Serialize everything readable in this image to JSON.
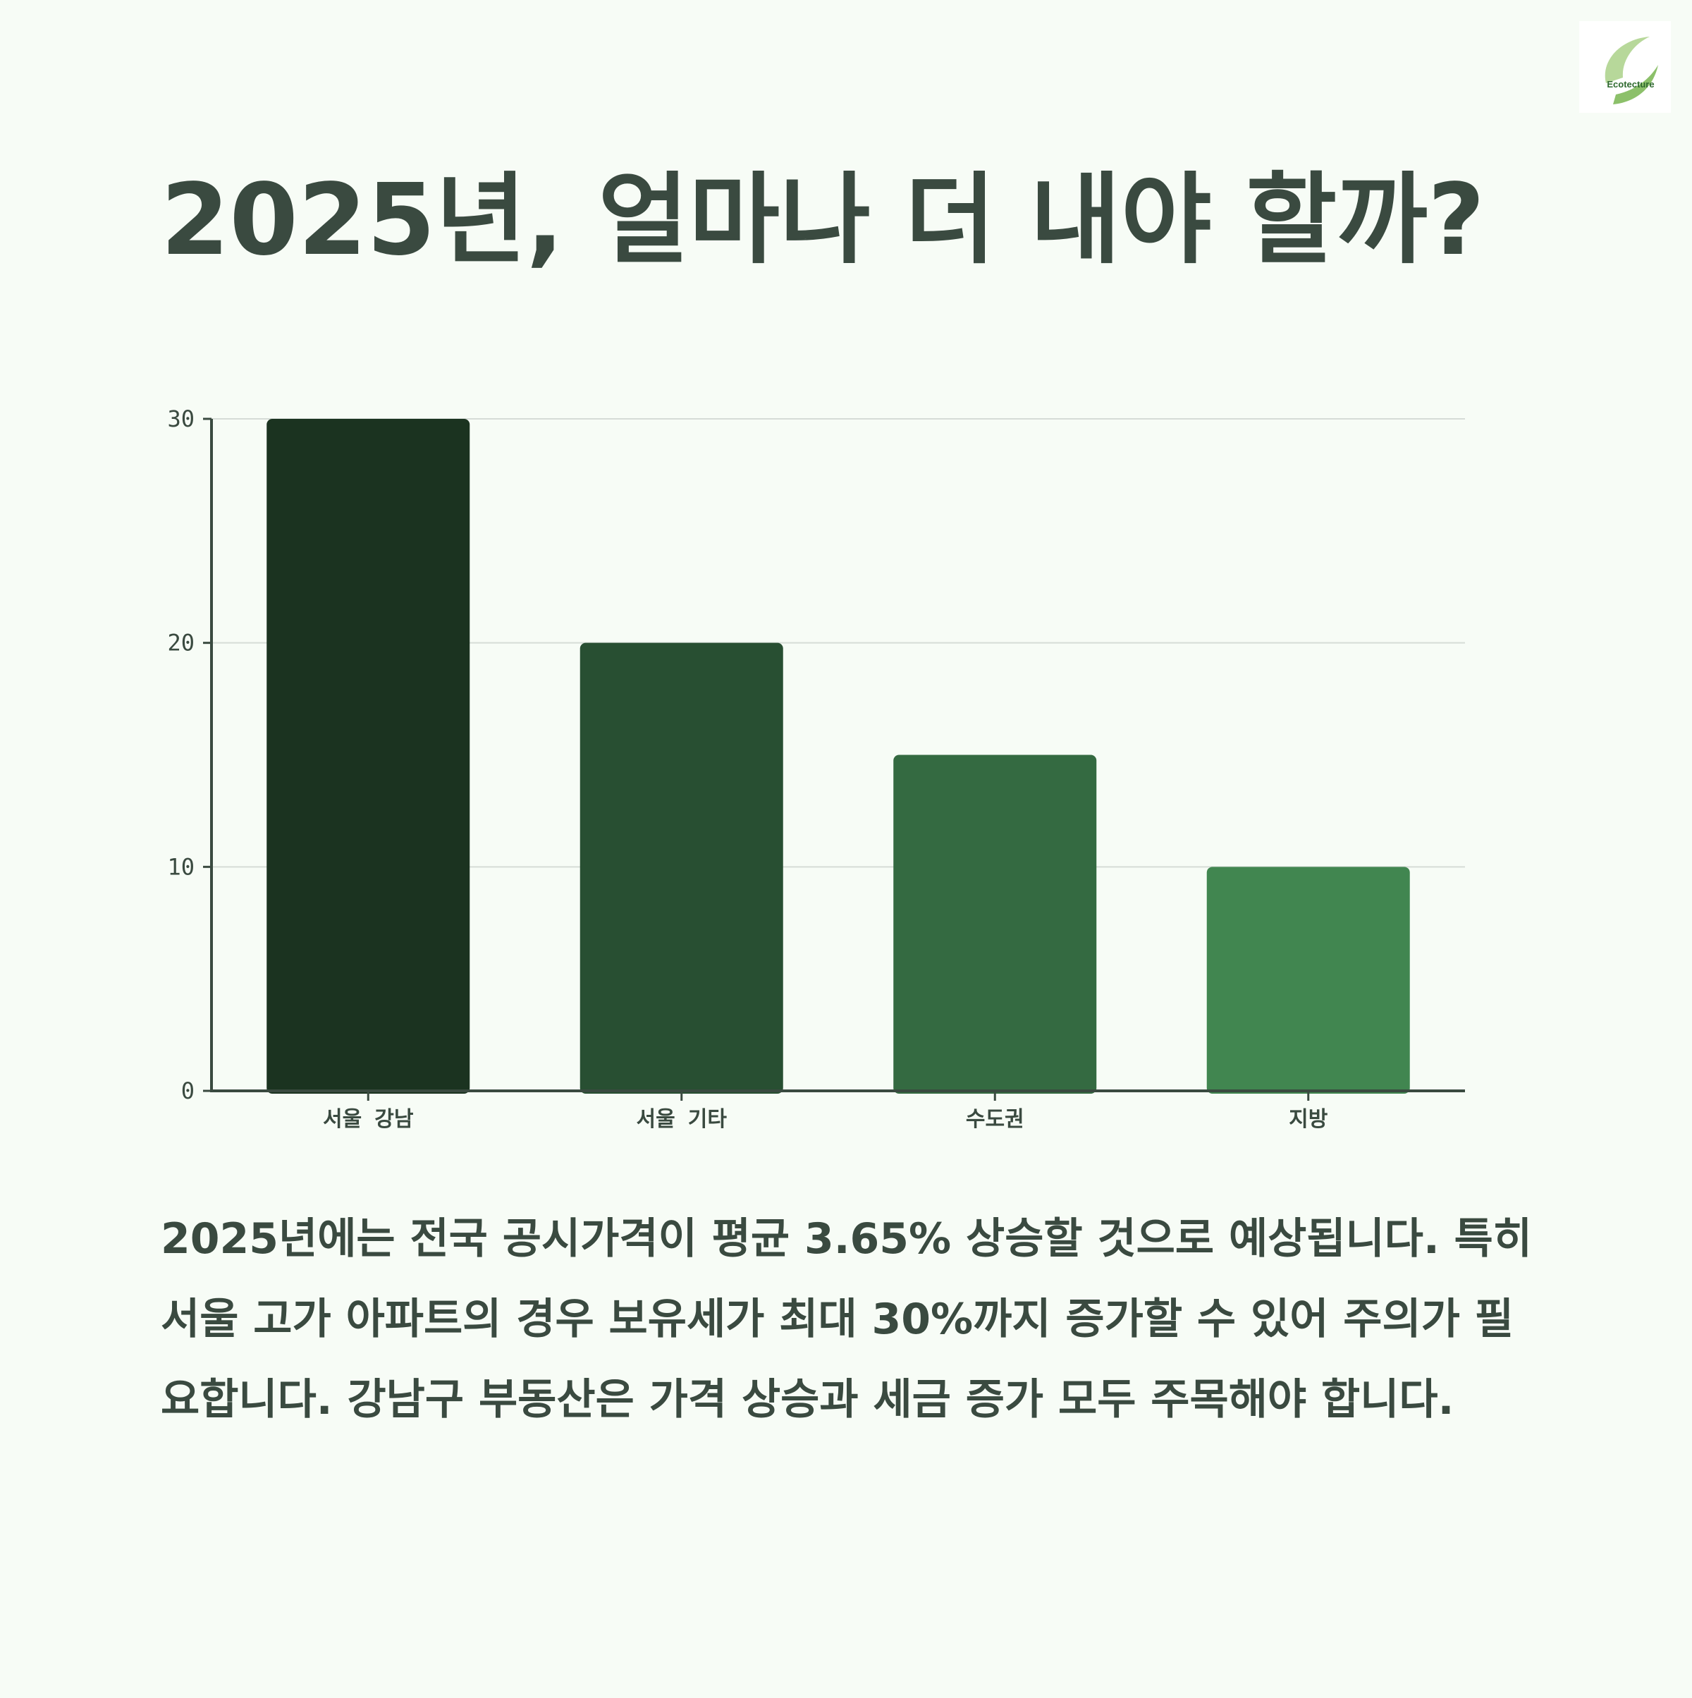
{
  "logo": {
    "text": "Ecotecture",
    "icon": "leaf-swoosh-icon",
    "colors": [
      "#b7d89a",
      "#8cc06a"
    ]
  },
  "title": "2025년, 얼마나 더 내야 할까?",
  "description": "2025년에는 전국 공시가격이 평균 3.65% 상승할 것으로 예상됩니다. 특히 서울 고가 아파트의 경우 보유세가 최대 30%까지 증가할 수 있어 주의가 필요합니다. 강남구 부동산은 가격 상승과 세금 증가 모두 주목해야 합니다.",
  "colors": {
    "background": "#f7fcf6",
    "text": "#3a4a40",
    "grid": "#d6dcd7",
    "axis": "#3a4a40"
  },
  "chart_data": {
    "type": "bar",
    "categories": [
      "서울 강남",
      "서울 기타",
      "수도권",
      "지방"
    ],
    "values": [
      30,
      20,
      15,
      10
    ],
    "colors": [
      "#1b3320",
      "#284f32",
      "#346a41",
      "#418650"
    ],
    "yticks": [
      0,
      10,
      20,
      30
    ],
    "ylim": [
      0,
      30
    ],
    "grid": true,
    "title": "",
    "xlabel": "",
    "ylabel": ""
  }
}
